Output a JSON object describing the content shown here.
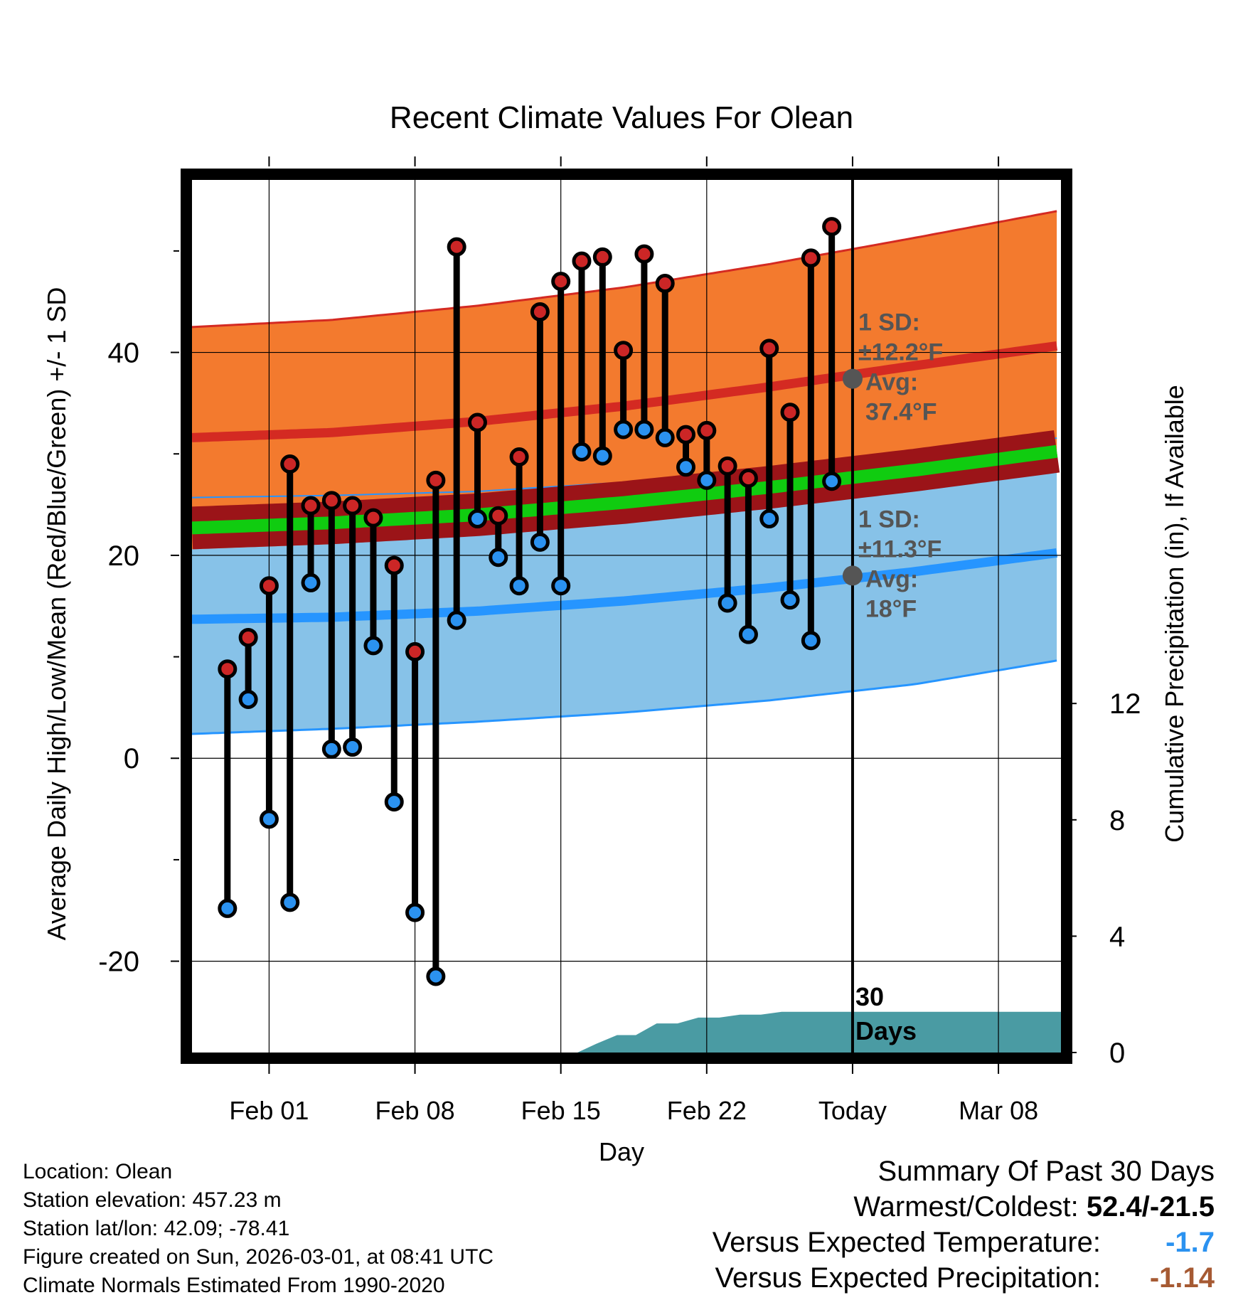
{
  "chart_data": {
    "type": "line",
    "title": "Recent Climate Values For Olean",
    "xlabel": "Day",
    "ylabel": "Average Daily High/Low/Mean (Red/Blue/Green) +/- 1 SD",
    "y2label": "Cumulative Precipitation (in), If Available",
    "xlim": [
      28.3,
      70.0
    ],
    "ylim": [
      -29,
      57
    ],
    "y2lim": [
      0,
      30
    ],
    "y_ticks": [
      -20,
      0,
      20,
      40
    ],
    "y2_ticks": [
      0,
      4,
      8,
      12
    ],
    "x_ticks": [
      {
        "day": 32,
        "label": "Feb 01"
      },
      {
        "day": 39,
        "label": "Feb 08"
      },
      {
        "day": 46,
        "label": "Feb 15"
      },
      {
        "day": 53,
        "label": "Feb 22"
      },
      {
        "day": 60,
        "label": "Today"
      },
      {
        "day": 67,
        "label": "Mar 08"
      }
    ],
    "today_day": 60,
    "window_label_line1": "30",
    "window_label_line2": "Days",
    "normals": {
      "days": [
        28.3,
        35,
        42,
        49,
        56,
        63,
        70
      ],
      "high_upper": [
        42.5,
        43.2,
        44.6,
        46.4,
        48.7,
        51.3,
        54.0
      ],
      "high_avg": [
        31.6,
        32.1,
        33.2,
        34.7,
        36.6,
        38.7,
        40.7
      ],
      "high_lower": [
        20.6,
        21.1,
        22.3,
        23.9,
        25.9,
        28.0,
        30.2
      ],
      "low_upper": [
        25.7,
        25.9,
        26.3,
        27.2,
        28.5,
        30.0,
        31.6
      ],
      "low_avg": [
        13.7,
        13.9,
        14.5,
        15.5,
        16.8,
        18.4,
        20.3
      ],
      "low_lower": [
        2.4,
        2.9,
        3.6,
        4.5,
        5.7,
        7.3,
        9.7
      ],
      "mean_avg": [
        22.7,
        23.2,
        24.0,
        25.2,
        26.7,
        28.4,
        30.3
      ]
    },
    "daily": {
      "days": [
        30,
        31,
        32,
        33,
        34,
        35,
        36,
        37,
        38,
        39,
        40,
        41,
        42,
        43,
        44,
        45,
        46,
        47,
        48,
        49,
        50,
        51,
        52,
        53,
        54,
        55,
        56,
        57,
        58,
        59
      ],
      "high": [
        8.8,
        11.9,
        17.0,
        29.0,
        24.9,
        25.4,
        24.9,
        23.7,
        19.0,
        10.5,
        27.4,
        50.4,
        33.1,
        23.9,
        29.7,
        44.0,
        47.0,
        49.0,
        49.4,
        40.2,
        49.7,
        46.8,
        31.9,
        32.3,
        28.8,
        27.6,
        40.4,
        34.1,
        49.3,
        52.4
      ],
      "low": [
        -14.8,
        5.8,
        -6.0,
        -14.2,
        17.3,
        0.9,
        1.1,
        11.1,
        -4.3,
        -15.2,
        -21.5,
        13.6,
        23.6,
        19.8,
        17.0,
        21.3,
        17.0,
        30.2,
        29.8,
        32.4,
        32.4,
        31.6,
        28.7,
        27.4,
        15.3,
        12.2,
        23.6,
        15.6,
        11.6,
        27.3
      ]
    },
    "precip": {
      "days": [
        46.8,
        47.7,
        48.7,
        49.6,
        50.6,
        51.6,
        52.6,
        53.6,
        54.6,
        55.6,
        56.6,
        70.0
      ],
      "values": [
        0.0,
        0.3,
        0.6,
        0.6,
        1.0,
        1.0,
        1.2,
        1.2,
        1.3,
        1.3,
        1.4,
        1.4
      ]
    },
    "high_annotation": {
      "sd": "±12.2°F",
      "avg": "37.4°F",
      "value": 37.4
    },
    "low_annotation": {
      "sd": "±11.3°F",
      "avg": "18°F",
      "value": 18.0
    },
    "annotation_sd_label": "1 SD:",
    "annotation_avg_label": "Avg:"
  },
  "colors": {
    "high_band": "#f37a2e",
    "high_avg": "#d42a22",
    "low_band": "#87c2e8",
    "low_avg": "#2695ff",
    "mean_band_edge": "#9b1418",
    "mean_avg": "#10cc10",
    "precip": "#4a9ba3",
    "high_dot": "#cc2626",
    "low_dot": "#2b92f0",
    "annotation": "#555555",
    "summary_temp": "#2b92f0",
    "summary_precip": "#a65a33"
  },
  "meta": {
    "location": "Location: Olean",
    "elevation": "Station elevation: 457.23 m",
    "latlon": "Station lat/lon: 42.09; -78.41",
    "created": "Figure created on Sun, 2026-03-01, at 08:41 UTC",
    "normals": "Climate Normals Estimated From 1990-2020"
  },
  "summary": {
    "title": "Summary Of Past 30 Days",
    "warm_cold_label": "Warmest/Coldest:",
    "warm_cold_value": "52.4/-21.5",
    "temp_label": "Versus Expected Temperature:",
    "temp_value": "-1.7",
    "precip_label": "Versus Expected Precipitation:",
    "precip_value": "-1.14"
  }
}
